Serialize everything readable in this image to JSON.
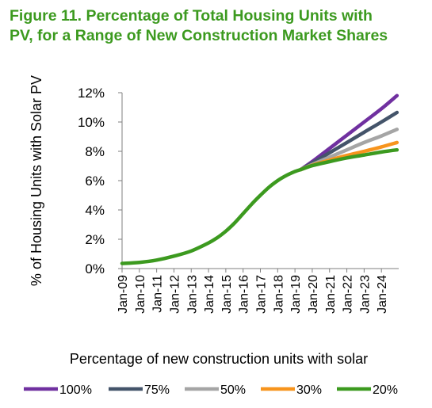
{
  "header": {
    "title_line1": "Figure 11. Percentage of Total Housing Units with",
    "title_line2": "PV, for a Range of New Construction Market Shares"
  },
  "chart_data": {
    "type": "line",
    "title": "Figure 11. Percentage of Total Housing Units with PV, for a Range of New Construction Market Shares",
    "ylabel": "% of Housing Units with Solar PV",
    "xlabel": "Percentage of new construction units with solar",
    "ylim": [
      0,
      12
    ],
    "xlim": [
      2009.0,
      2025.0
    ],
    "y_ticks": [
      "0%",
      "2%",
      "4%",
      "6%",
      "8%",
      "10%",
      "12%"
    ],
    "y_tick_values": [
      0,
      2,
      4,
      6,
      8,
      10,
      12
    ],
    "x_ticks": [
      "Jan-09",
      "Jan-10",
      "Jan-11",
      "Jan-12",
      "Jan-13",
      "Jan-14",
      "Jan-15",
      "Jan-16",
      "Jan-17",
      "Jan-18",
      "Jan-19",
      "Jan-20",
      "Jan-21",
      "Jan-22",
      "Jan-23",
      "Jan-24"
    ],
    "x_tick_values": [
      2009,
      2010,
      2011,
      2012,
      2013,
      2014,
      2015,
      2016,
      2017,
      2018,
      2019,
      2020,
      2021,
      2022,
      2023,
      2024
    ],
    "grid": false,
    "legend_position": "bottom",
    "common_history": {
      "x": [
        2009.0,
        2010.0,
        2011.0,
        2012.0,
        2013.0,
        2014.0,
        2014.5,
        2015.0,
        2015.5,
        2016.0,
        2016.5,
        2017.0,
        2017.5,
        2018.0,
        2018.5,
        2019.0,
        2019.33
      ],
      "y": [
        0.35,
        0.42,
        0.58,
        0.85,
        1.2,
        1.75,
        2.1,
        2.55,
        3.1,
        3.75,
        4.4,
        5.0,
        5.55,
        6.0,
        6.35,
        6.62,
        6.75
      ]
    },
    "series": [
      {
        "name": "100%",
        "color": "#7030a0",
        "x": [
          2019.33,
          2020.0,
          2021.0,
          2022.0,
          2023.0,
          2024.0,
          2024.9
        ],
        "y": [
          6.75,
          7.3,
          8.2,
          9.1,
          10.0,
          10.9,
          11.8
        ]
      },
      {
        "name": "75%",
        "color": "#44546a",
        "x": [
          2019.33,
          2020.0,
          2021.0,
          2022.0,
          2023.0,
          2024.0,
          2024.9
        ],
        "y": [
          6.75,
          7.2,
          7.9,
          8.6,
          9.3,
          10.0,
          10.65
        ]
      },
      {
        "name": "50%",
        "color": "#a5a5a5",
        "x": [
          2019.33,
          2020.0,
          2021.0,
          2022.0,
          2023.0,
          2024.0,
          2024.9
        ],
        "y": [
          6.75,
          7.1,
          7.6,
          8.1,
          8.6,
          9.05,
          9.5
        ]
      },
      {
        "name": "30%",
        "color": "#f7941d",
        "x": [
          2019.33,
          2020.0,
          2021.0,
          2022.0,
          2023.0,
          2024.0,
          2024.9
        ],
        "y": [
          6.75,
          7.05,
          7.4,
          7.72,
          8.0,
          8.3,
          8.6
        ]
      },
      {
        "name": "20%",
        "color": "#3c9a1f",
        "x": [
          2019.33,
          2020.0,
          2021.0,
          2022.0,
          2023.0,
          2024.0,
          2024.9
        ],
        "y": [
          6.75,
          7.02,
          7.3,
          7.55,
          7.75,
          7.95,
          8.1
        ]
      }
    ]
  }
}
